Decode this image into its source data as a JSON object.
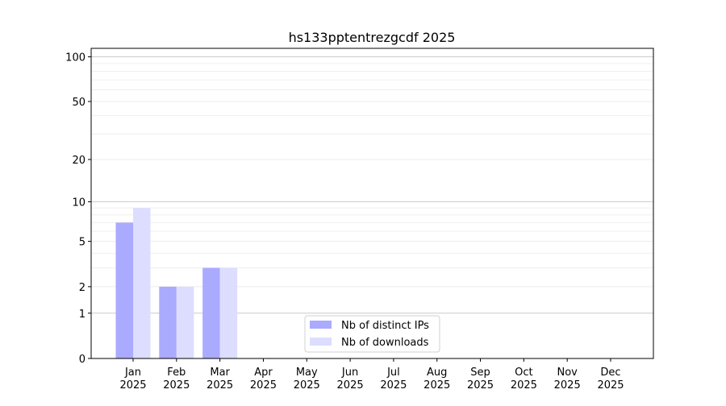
{
  "chart_data": {
    "type": "bar",
    "title": "hs133pptentrezgcdf 2025",
    "xlabel": "",
    "ylabel": "",
    "y_scale": "log10(1+y)",
    "ylim": [
      0,
      114
    ],
    "yticks": [
      0,
      1,
      2,
      5,
      10,
      20,
      50,
      100
    ],
    "grid": true,
    "legend_position": "lower center",
    "categories": [
      "Jan\n2025",
      "Feb\n2025",
      "Mar\n2025",
      "Apr\n2025",
      "May\n2025",
      "Jun\n2025",
      "Jul\n2025",
      "Aug\n2025",
      "Sep\n2025",
      "Oct\n2025",
      "Nov\n2025",
      "Dec\n2025"
    ],
    "series": [
      {
        "name": "Nb of distinct IPs",
        "color": "#aaaaff",
        "values": [
          7,
          2,
          3,
          0,
          0,
          0,
          0,
          0,
          0,
          0,
          0,
          0
        ]
      },
      {
        "name": "Nb of downloads",
        "color": "#ddddff",
        "values": [
          9,
          2,
          3,
          0,
          0,
          0,
          0,
          0,
          0,
          0,
          0,
          0
        ]
      }
    ]
  }
}
